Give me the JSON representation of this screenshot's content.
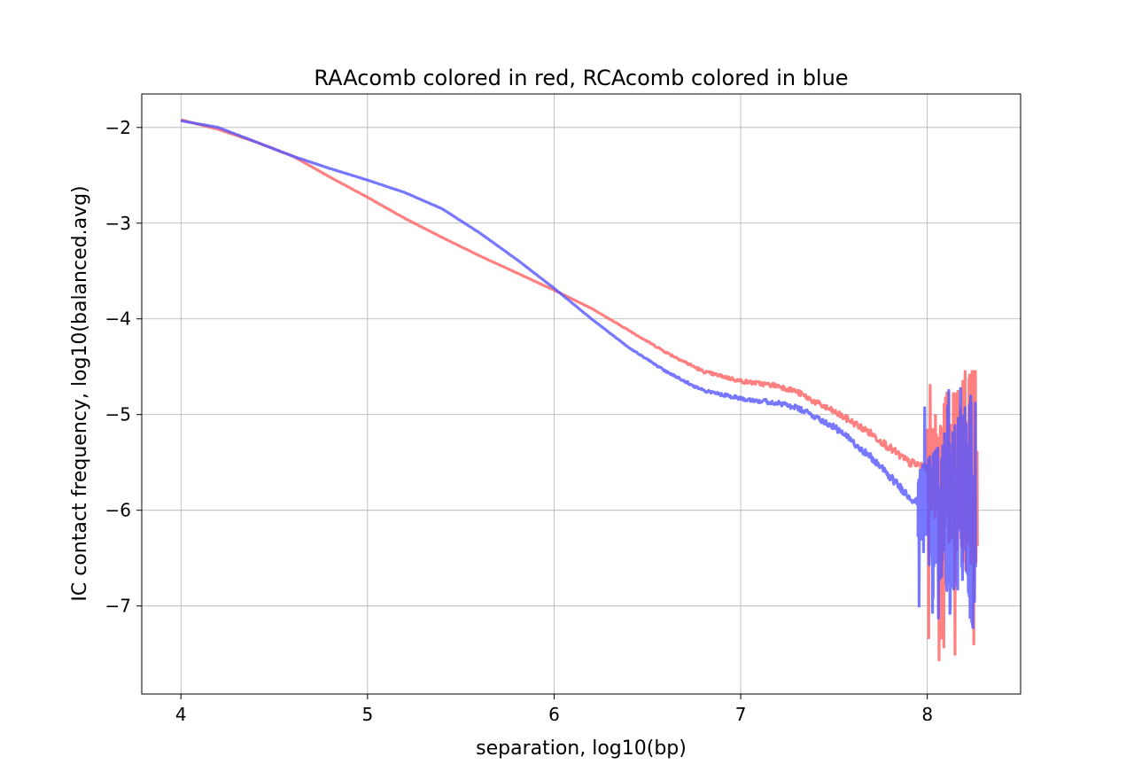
{
  "chart_data": {
    "type": "line",
    "title": "RAAcomb colored in red, RCAcomb colored in blue",
    "xlabel": "separation, log10(bp)",
    "ylabel": "IC contact frequency, log10(balanced.avg)",
    "xlim": [
      3.79,
      8.5
    ],
    "ylim": [
      -7.92,
      -1.65
    ],
    "xticks": [
      4,
      5,
      6,
      7,
      8
    ],
    "yticks": [
      -2,
      -3,
      -4,
      -5,
      -6,
      -7
    ],
    "xtick_labels": [
      "4",
      "5",
      "6",
      "7",
      "8"
    ],
    "ytick_labels": [
      "−2",
      "−3",
      "−4",
      "−5",
      "−6",
      "−7"
    ],
    "grid": true,
    "series": [
      {
        "color": "#ff6a6a",
        "opacity": 0.85,
        "x": [
          4.0,
          4.2,
          4.4,
          4.6,
          4.8,
          5.0,
          5.2,
          5.4,
          5.6,
          5.8,
          6.0,
          6.2,
          6.4,
          6.6,
          6.8,
          7.0,
          7.2,
          7.3,
          7.4,
          7.5,
          7.6,
          7.7,
          7.8,
          7.9,
          8.0
        ],
        "values": [
          -1.92,
          -2.02,
          -2.15,
          -2.3,
          -2.52,
          -2.73,
          -2.95,
          -3.15,
          -3.34,
          -3.52,
          -3.7,
          -3.89,
          -4.12,
          -4.35,
          -4.55,
          -4.65,
          -4.7,
          -4.76,
          -4.87,
          -4.97,
          -5.08,
          -5.2,
          -5.35,
          -5.5,
          -5.55
        ],
        "noise_start_x": 8.0,
        "noise_end_x": 8.27,
        "noise_range": [
          -7.63,
          -4.55
        ]
      },
      {
        "color": "#5555ff",
        "opacity": 0.8,
        "x": [
          4.0,
          4.2,
          4.4,
          4.6,
          4.8,
          5.0,
          5.2,
          5.4,
          5.6,
          5.8,
          6.0,
          6.2,
          6.4,
          6.6,
          6.8,
          7.0,
          7.2,
          7.3,
          7.4,
          7.5,
          7.6,
          7.7,
          7.8,
          7.9,
          8.0
        ],
        "values": [
          -1.93,
          -2.0,
          -2.15,
          -2.3,
          -2.43,
          -2.55,
          -2.68,
          -2.85,
          -3.1,
          -3.38,
          -3.68,
          -4.0,
          -4.3,
          -4.55,
          -4.75,
          -4.83,
          -4.88,
          -4.93,
          -5.02,
          -5.13,
          -5.28,
          -5.45,
          -5.65,
          -5.85,
          -6.0
        ],
        "noise_start_x": 7.95,
        "noise_end_x": 8.26,
        "noise_range": [
          -7.25,
          -4.65
        ]
      }
    ]
  }
}
